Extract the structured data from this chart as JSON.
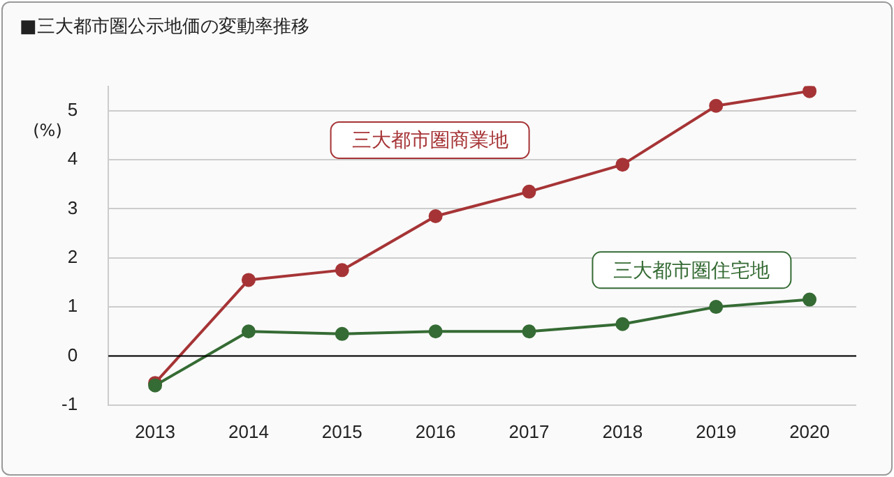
{
  "chart_data": {
    "type": "line",
    "title": "■三大都市圏公示地価の変動率推移",
    "ylabel": "(%)",
    "categories": [
      "2013",
      "2014",
      "2015",
      "2016",
      "2017",
      "2018",
      "2019",
      "2020"
    ],
    "series": [
      {
        "name": "三大都市圏商業地",
        "color": "#a63436",
        "values": [
          -0.55,
          1.55,
          1.75,
          2.85,
          3.35,
          3.9,
          5.1,
          5.4
        ]
      },
      {
        "name": "三大都市圏住宅地",
        "color": "#356b34",
        "values": [
          -0.6,
          0.5,
          0.45,
          0.5,
          0.5,
          0.65,
          1.0,
          1.15
        ]
      }
    ],
    "ylim": [
      -1,
      5.5
    ],
    "yticks": [
      -1,
      0,
      1,
      2,
      3,
      4,
      5
    ],
    "ref_lines": [
      {
        "axis": "y",
        "value": 0,
        "color": "#000000"
      }
    ],
    "grid": "y",
    "legend": false,
    "marker": "circle",
    "line_style": "solid"
  }
}
